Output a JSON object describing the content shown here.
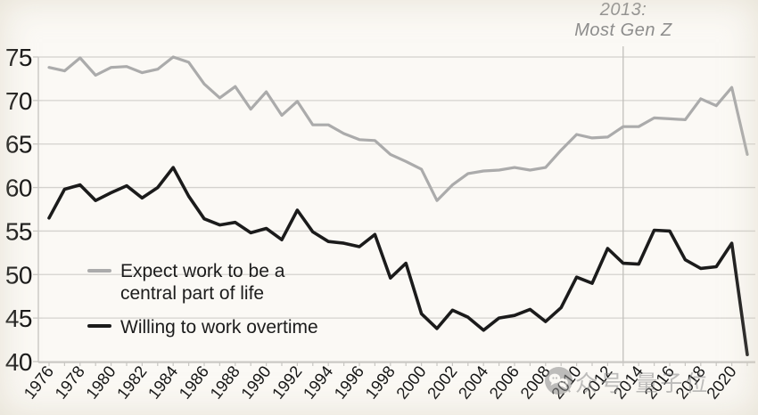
{
  "annotation": {
    "line1": "2013:",
    "line2": "Most Gen Z"
  },
  "watermark": {
    "icon": "chat-bubbles-icon",
    "text": "公众号·量子位"
  },
  "colors": {
    "expect_line": "#ababab",
    "willing_line": "#1b1b1b",
    "grid": "#d4d2ce",
    "axis_line": "#c9c7c3",
    "ref_line": "#c2c0bc",
    "axis_text": "#141414",
    "annotation_text": "#8c8c8c",
    "background": "#fbf9f5",
    "watermark_gray": "#8b8b8b"
  },
  "chart_data": {
    "type": "line",
    "title": "",
    "xlabel": "",
    "ylabel": "",
    "x": [
      1976,
      1977,
      1978,
      1979,
      1980,
      1981,
      1982,
      1983,
      1984,
      1985,
      1986,
      1987,
      1988,
      1989,
      1990,
      1991,
      1992,
      1993,
      1994,
      1995,
      1996,
      1997,
      1998,
      1999,
      2000,
      2001,
      2002,
      2003,
      2004,
      2005,
      2006,
      2007,
      2008,
      2009,
      2010,
      2011,
      2012,
      2013,
      2014,
      2015,
      2016,
      2017,
      2018,
      2019,
      2020,
      2021
    ],
    "series": [
      {
        "name": "Expect work to be a central part of life",
        "color_key": "expect_line",
        "stroke_width": 3.2,
        "values": [
          73.8,
          73.4,
          74.9,
          72.9,
          73.8,
          73.9,
          73.2,
          73.6,
          75.0,
          74.4,
          71.9,
          70.3,
          71.6,
          69.0,
          71.0,
          68.3,
          69.9,
          67.2,
          67.2,
          66.2,
          65.5,
          65.4,
          63.8,
          63.0,
          62.1,
          58.5,
          60.3,
          61.6,
          61.9,
          62.0,
          62.3,
          62.0,
          62.3,
          64.3,
          66.1,
          65.7,
          65.8,
          67.0,
          67.0,
          68.0,
          67.9,
          67.8,
          70.2,
          69.4,
          71.5,
          63.8
        ]
      },
      {
        "name": "Willing to work overtime",
        "color_key": "willing_line",
        "stroke_width": 3.6,
        "values": [
          56.5,
          59.8,
          60.3,
          58.5,
          59.4,
          60.2,
          58.8,
          60.0,
          62.3,
          59.0,
          56.4,
          55.7,
          56.0,
          54.8,
          55.3,
          54.0,
          57.4,
          54.9,
          53.8,
          53.6,
          53.2,
          54.6,
          49.6,
          51.3,
          45.5,
          43.8,
          45.9,
          45.1,
          43.6,
          45.0,
          45.3,
          46.0,
          44.6,
          46.2,
          49.7,
          49.0,
          53.0,
          51.3,
          51.2,
          55.1,
          55.0,
          51.7,
          50.7,
          50.9,
          53.6,
          40.8
        ]
      }
    ],
    "ylim": [
      40,
      75
    ],
    "ytick_step": 5,
    "ytick_labels": [
      "40",
      "45",
      "50",
      "55",
      "60",
      "65",
      "70",
      "75"
    ],
    "xtick_every": 2,
    "xtick_labels": [
      "1976",
      "1978",
      "1980",
      "1982",
      "1984",
      "1986",
      "1988",
      "1990",
      "1992",
      "1994",
      "1996",
      "1998",
      "2000",
      "2002",
      "2004",
      "2006",
      "2008",
      "2010",
      "2012",
      "2014",
      "2016",
      "2018",
      "2020"
    ],
    "grid": true,
    "legend_position": "inside-bottom-left",
    "annotation_x": 2013
  }
}
